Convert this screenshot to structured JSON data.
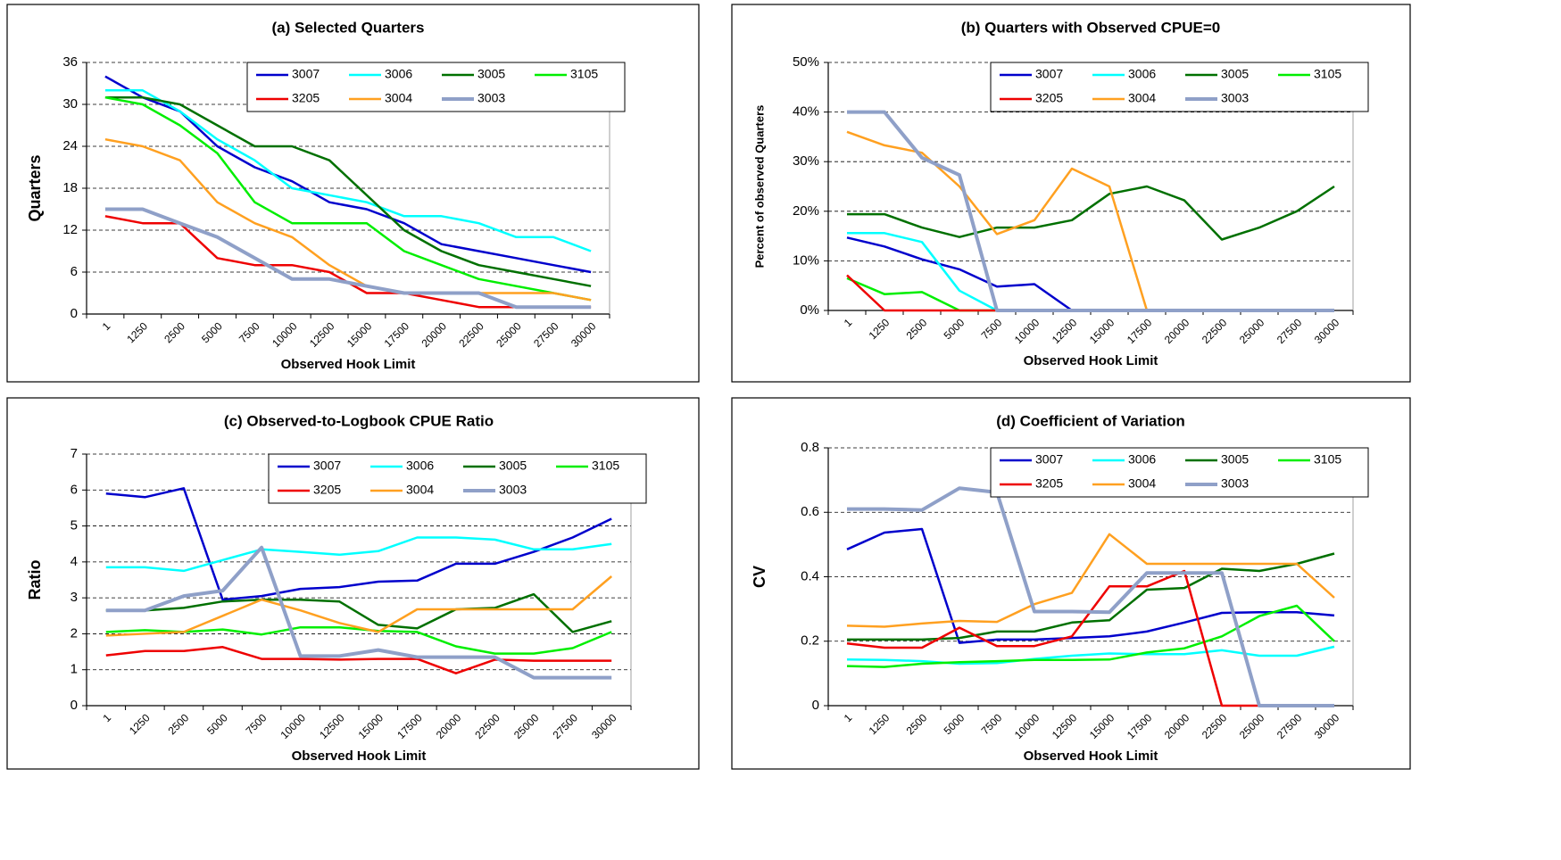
{
  "chart_data": [
    {
      "type": "line",
      "title": "(a) Selected Quarters",
      "x_label": "Observed Hook Limit",
      "y_label": "Quarters",
      "categories": [
        "1",
        "1250",
        "2500",
        "5000",
        "7500",
        "10000",
        "12500",
        "15000",
        "17500",
        "20000",
        "22500",
        "25000",
        "27500",
        "30000"
      ],
      "ylim": [
        0,
        36
      ],
      "yticks": [
        0,
        6,
        12,
        18,
        24,
        30,
        36
      ],
      "grid": true,
      "legend": "top-right",
      "series": [
        {
          "name": "3007",
          "color": "#0000cc",
          "values": [
            34,
            31,
            29,
            24,
            21,
            19,
            16,
            15,
            13,
            10,
            9,
            8,
            7,
            6
          ]
        },
        {
          "name": "3006",
          "color": "#00ffff",
          "values": [
            32,
            32,
            29,
            25,
            22,
            18,
            17,
            16,
            14,
            14,
            13,
            11,
            11,
            9
          ]
        },
        {
          "name": "3005",
          "color": "#007000",
          "values": [
            31,
            31,
            30,
            27,
            24,
            24,
            22,
            17,
            12,
            9,
            7,
            6,
            5,
            4
          ]
        },
        {
          "name": "3105",
          "color": "#00ee00",
          "values": [
            31,
            30,
            27,
            23,
            16,
            13,
            13,
            13,
            9,
            7,
            5,
            4,
            3,
            2
          ]
        },
        {
          "name": "3205",
          "color": "#ee0000",
          "values": [
            14,
            13,
            13,
            8,
            7,
            7,
            6,
            3,
            3,
            2,
            1,
            1,
            1,
            1
          ]
        },
        {
          "name": "3004",
          "color": "#ffa020",
          "values": [
            25,
            24,
            22,
            16,
            13,
            11,
            7,
            4,
            3,
            3,
            3,
            3,
            3,
            2
          ]
        },
        {
          "name": "3003",
          "color": "#8fa0c8",
          "values": [
            15,
            15,
            13,
            11,
            8,
            5,
            5,
            4,
            3,
            3,
            3,
            1,
            1,
            1
          ]
        }
      ]
    },
    {
      "type": "line",
      "title": "(b) Quarters with Observed CPUE=0",
      "x_label": "Observed Hook Limit",
      "y_label": "Percent of observed Quarters",
      "categories": [
        "1",
        "1250",
        "2500",
        "5000",
        "7500",
        "10000",
        "12500",
        "15000",
        "17500",
        "20000",
        "22500",
        "25000",
        "27500",
        "30000"
      ],
      "ylim": [
        0,
        50
      ],
      "yticks": [
        {
          "value": 0,
          "label": "0%"
        },
        {
          "value": 10,
          "label": "10%"
        },
        {
          "value": 20,
          "label": "20%"
        },
        {
          "value": 30,
          "label": "30%"
        },
        {
          "value": 40,
          "label": "40%"
        },
        {
          "value": 50,
          "label": "50%"
        }
      ],
      "grid": true,
      "legend": "top-right",
      "series": [
        {
          "name": "3007",
          "color": "#0000cc",
          "values": [
            14.7,
            12.9,
            10.3,
            8.3,
            4.8,
            5.3,
            0,
            0,
            0,
            0,
            0,
            0,
            0,
            0
          ]
        },
        {
          "name": "3006",
          "color": "#00ffff",
          "values": [
            15.6,
            15.6,
            13.8,
            4,
            0,
            0,
            0,
            0,
            0,
            0,
            0,
            0,
            0,
            0
          ]
        },
        {
          "name": "3005",
          "color": "#007000",
          "values": [
            19.4,
            19.4,
            16.7,
            14.8,
            16.7,
            16.7,
            18.2,
            23.5,
            25,
            22.2,
            14.3,
            16.7,
            20,
            25
          ]
        },
        {
          "name": "3105",
          "color": "#00ee00",
          "values": [
            6.5,
            3.3,
            3.7,
            0,
            0,
            0,
            0,
            0,
            0,
            0,
            0,
            0,
            0,
            0
          ]
        },
        {
          "name": "3205",
          "color": "#ee0000",
          "values": [
            7.1,
            0,
            0,
            0,
            0,
            0,
            0,
            0,
            0,
            0,
            0,
            0,
            0,
            0
          ]
        },
        {
          "name": "3004",
          "color": "#ffa020",
          "values": [
            36,
            33.3,
            31.8,
            25,
            15.4,
            18.2,
            28.6,
            25,
            0,
            0,
            0,
            0,
            0,
            0
          ]
        },
        {
          "name": "3003",
          "color": "#8fa0c8",
          "values": [
            40,
            40,
            30.8,
            27.3,
            0,
            0,
            0,
            0,
            0,
            0,
            0,
            0,
            0,
            0
          ]
        }
      ]
    },
    {
      "type": "line",
      "title": "(c) Observed-to-Logbook CPUE Ratio",
      "x_label": "Observed Hook Limit",
      "y_label": "Ratio",
      "categories": [
        "1",
        "1250",
        "2500",
        "5000",
        "7500",
        "10000",
        "12500",
        "15000",
        "17500",
        "20000",
        "22500",
        "25000",
        "27500",
        "30000"
      ],
      "ylim": [
        0,
        7
      ],
      "yticks": [
        0,
        1,
        2,
        3,
        4,
        5,
        6,
        7
      ],
      "grid": true,
      "legend": "top-right",
      "series": [
        {
          "name": "3007",
          "color": "#0000cc",
          "values": [
            5.9,
            5.8,
            6.05,
            2.95,
            3.05,
            3.25,
            3.3,
            3.45,
            3.48,
            3.95,
            3.95,
            4.28,
            4.68,
            5.2
          ]
        },
        {
          "name": "3006",
          "color": "#00ffff",
          "values": [
            3.85,
            3.85,
            3.75,
            4.05,
            4.35,
            4.28,
            4.2,
            4.3,
            4.68,
            4.68,
            4.62,
            4.35,
            4.35,
            4.5
          ]
        },
        {
          "name": "3005",
          "color": "#007000",
          "values": [
            2.65,
            2.65,
            2.72,
            2.9,
            2.95,
            2.95,
            2.9,
            2.25,
            2.15,
            2.68,
            2.72,
            3.1,
            2.05,
            2.35
          ]
        },
        {
          "name": "3105",
          "color": "#00ee00",
          "values": [
            2.05,
            2.1,
            2.05,
            2.12,
            1.98,
            2.18,
            2.18,
            2.08,
            2.05,
            1.65,
            1.45,
            1.45,
            1.6,
            2.05
          ]
        },
        {
          "name": "3205",
          "color": "#ee0000",
          "values": [
            1.4,
            1.52,
            1.52,
            1.63,
            1.3,
            1.3,
            1.28,
            1.3,
            1.3,
            0.9,
            1.28,
            1.25,
            1.25,
            1.25
          ]
        },
        {
          "name": "3004",
          "color": "#ffa020",
          "values": [
            1.95,
            2,
            2.05,
            2.5,
            2.95,
            2.65,
            2.3,
            2.05,
            2.68,
            2.68,
            2.68,
            2.68,
            2.68,
            3.6
          ]
        },
        {
          "name": "3003",
          "color": "#8fa0c8",
          "values": [
            2.65,
            2.65,
            3.05,
            3.2,
            4.4,
            1.38,
            1.38,
            1.55,
            1.35,
            1.35,
            1.35,
            0.78,
            0.78,
            0.78
          ]
        }
      ]
    },
    {
      "type": "line",
      "title": "(d) Coefficient of Variation",
      "x_label": "Observed Hook Limit",
      "y_label": "CV",
      "categories": [
        "1",
        "1250",
        "2500",
        "5000",
        "7500",
        "10000",
        "12500",
        "15000",
        "17500",
        "20000",
        "22500",
        "25000",
        "27500",
        "30000"
      ],
      "ylim": [
        0,
        0.8
      ],
      "yticks": [
        0,
        0.2,
        0.4,
        0.6,
        0.8
      ],
      "grid": true,
      "legend": "top-right",
      "series": [
        {
          "name": "3007",
          "color": "#0000cc",
          "values": [
            0.485,
            0.537,
            0.548,
            0.195,
            0.205,
            0.205,
            0.21,
            0.215,
            0.23,
            0.258,
            0.288,
            0.29,
            0.29,
            0.28
          ]
        },
        {
          "name": "3006",
          "color": "#00ffff",
          "values": [
            0.143,
            0.142,
            0.138,
            0.13,
            0.132,
            0.145,
            0.155,
            0.162,
            0.16,
            0.16,
            0.172,
            0.155,
            0.155,
            0.183
          ]
        },
        {
          "name": "3005",
          "color": "#007000",
          "values": [
            0.205,
            0.205,
            0.205,
            0.21,
            0.23,
            0.23,
            0.258,
            0.265,
            0.36,
            0.365,
            0.425,
            0.418,
            0.44,
            0.472
          ]
        },
        {
          "name": "3105",
          "color": "#00ee00",
          "values": [
            0.123,
            0.12,
            0.13,
            0.135,
            0.138,
            0.142,
            0.142,
            0.143,
            0.165,
            0.178,
            0.215,
            0.278,
            0.31,
            0.2
          ]
        },
        {
          "name": "3205",
          "color": "#ee0000",
          "values": [
            0.193,
            0.18,
            0.18,
            0.242,
            0.185,
            0.185,
            0.215,
            0.37,
            0.37,
            0.418,
            0,
            0,
            0,
            0
          ]
        },
        {
          "name": "3004",
          "color": "#ffa020",
          "values": [
            0.248,
            0.245,
            0.255,
            0.263,
            0.26,
            0.315,
            0.35,
            0.532,
            0.44,
            0.44,
            0.44,
            0.44,
            0.44,
            0.335
          ]
        },
        {
          "name": "3003",
          "color": "#8fa0c8",
          "values": [
            0.61,
            0.61,
            0.607,
            0.675,
            0.662,
            0.292,
            0.292,
            0.29,
            0.412,
            0.412,
            0.412,
            0,
            0,
            0
          ]
        }
      ]
    }
  ]
}
